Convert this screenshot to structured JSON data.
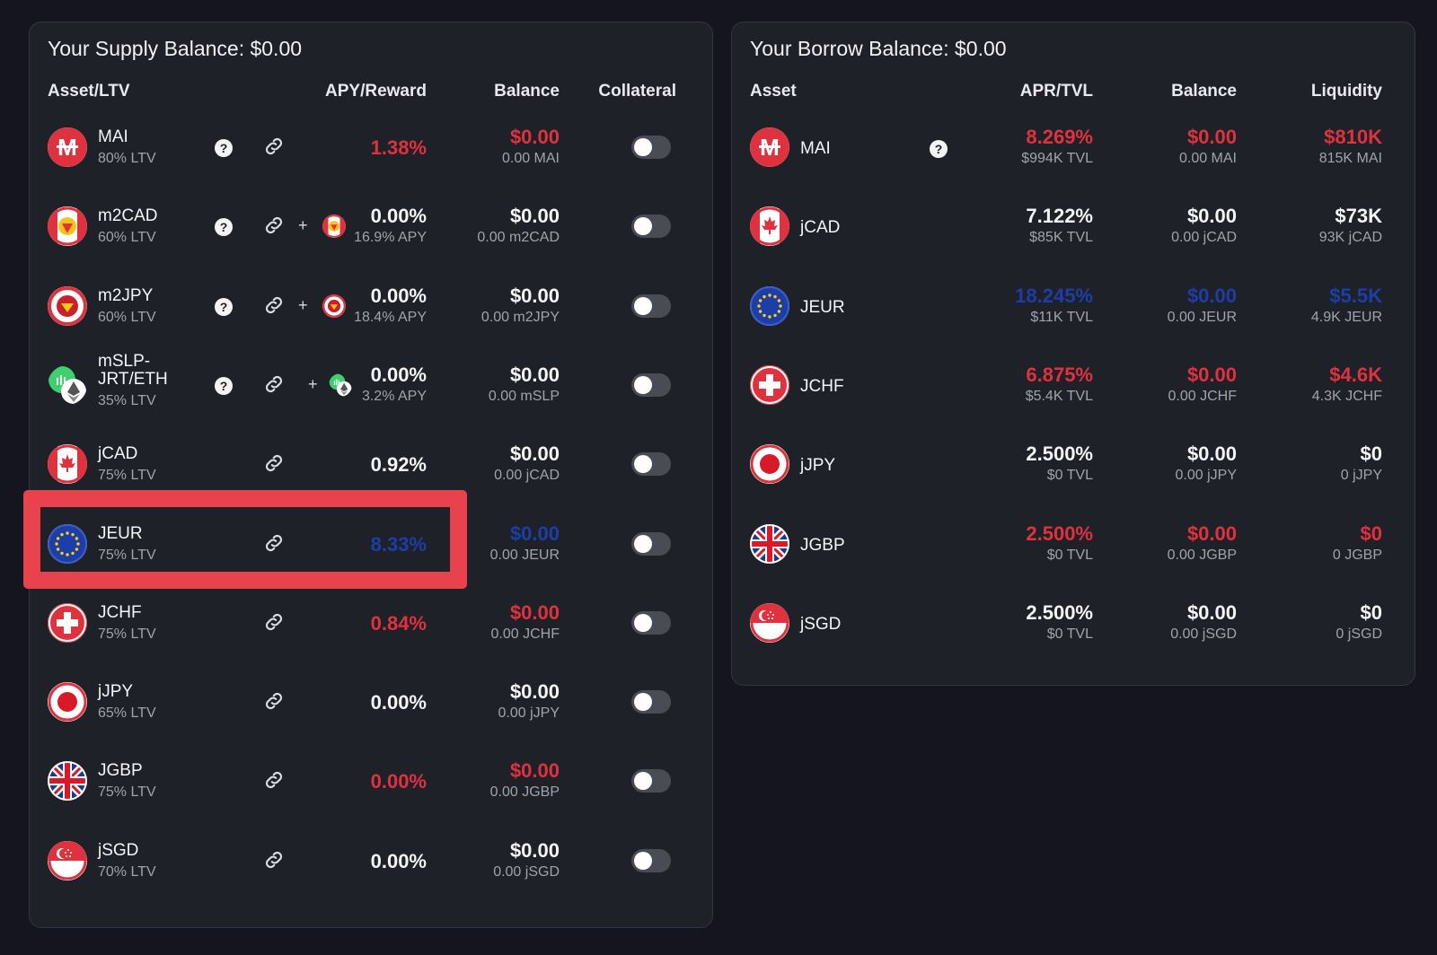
{
  "supply": {
    "title": "Your Supply Balance: $0.00",
    "headers": {
      "asset": "Asset/LTV",
      "apy": "APY/Reward",
      "balance": "Balance",
      "collateral": "Collateral"
    },
    "rows": [
      {
        "name": "MAI",
        "ltv": "80% LTV",
        "apy": "1.38%",
        "reward": "",
        "balance": "$0.00",
        "balance_sub": "0.00 MAI",
        "color": "#e0323e",
        "collateral": false
      },
      {
        "name": "m2CAD",
        "ltv": "60% LTV",
        "apy": "0.00%",
        "reward": "16.9% APY",
        "balance": "$0.00",
        "balance_sub": "0.00 m2CAD",
        "color": "#f5f5f7",
        "collateral": false
      },
      {
        "name": "m2JPY",
        "ltv": "60% LTV",
        "apy": "0.00%",
        "reward": "18.4% APY",
        "balance": "$0.00",
        "balance_sub": "0.00 m2JPY",
        "color": "#f5f5f7",
        "collateral": false
      },
      {
        "name": "mSLP-JRT/ETH",
        "name_line1": "mSLP-",
        "name_line2": "JRT/ETH",
        "ltv": "35% LTV",
        "apy": "0.00%",
        "reward": "3.2% APY",
        "balance": "$0.00",
        "balance_sub": "0.00 mSLP",
        "color": "#f5f5f7",
        "collateral": false
      },
      {
        "name": "jCAD",
        "ltv": "75% LTV",
        "apy": "0.92%",
        "reward": "",
        "balance": "$0.00",
        "balance_sub": "0.00 jCAD",
        "color": "#f5f5f7",
        "collateral": false
      },
      {
        "name": "JEUR",
        "ltv": "75% LTV",
        "apy": "8.33%",
        "reward": "",
        "balance": "$0.00",
        "balance_sub": "0.00 JEUR",
        "color": "#1d3ea8",
        "collateral": false
      },
      {
        "name": "JCHF",
        "ltv": "75% LTV",
        "apy": "0.84%",
        "reward": "",
        "balance": "$0.00",
        "balance_sub": "0.00 JCHF",
        "color": "#e0323e",
        "collateral": false
      },
      {
        "name": "jJPY",
        "ltv": "65% LTV",
        "apy": "0.00%",
        "reward": "",
        "balance": "$0.00",
        "balance_sub": "0.00 jJPY",
        "color": "#f5f5f7",
        "collateral": false
      },
      {
        "name": "JGBP",
        "ltv": "75% LTV",
        "apy": "0.00%",
        "reward": "",
        "balance": "$0.00",
        "balance_sub": "0.00 JGBP",
        "color": "#e0323e",
        "collateral": false
      },
      {
        "name": "jSGD",
        "ltv": "70% LTV",
        "apy": "0.00%",
        "reward": "",
        "balance": "$0.00",
        "balance_sub": "0.00 jSGD",
        "color": "#f5f5f7",
        "collateral": false
      }
    ]
  },
  "borrow": {
    "title": "Your Borrow Balance: $0.00",
    "headers": {
      "asset": "Asset",
      "apr": "APR/TVL",
      "balance": "Balance",
      "liquidity": "Liquidity"
    },
    "rows": [
      {
        "name": "MAI",
        "apr": "8.269%",
        "tvl": "$994K TVL",
        "balance": "$0.00",
        "balance_sub": "0.00 MAI",
        "liquidity": "$810K",
        "liquidity_sub": "815K MAI",
        "color": "#e0323e"
      },
      {
        "name": "jCAD",
        "apr": "7.122%",
        "tvl": "$85K TVL",
        "balance": "$0.00",
        "balance_sub": "0.00 jCAD",
        "liquidity": "$73K",
        "liquidity_sub": "93K jCAD",
        "color": "#f5f5f7"
      },
      {
        "name": "JEUR",
        "apr": "18.245%",
        "tvl": "$11K TVL",
        "balance": "$0.00",
        "balance_sub": "0.00 JEUR",
        "liquidity": "$5.5K",
        "liquidity_sub": "4.9K JEUR",
        "color": "#1d3ea8"
      },
      {
        "name": "JCHF",
        "apr": "6.875%",
        "tvl": "$5.4K TVL",
        "balance": "$0.00",
        "balance_sub": "0.00 JCHF",
        "liquidity": "$4.6K",
        "liquidity_sub": "4.3K JCHF",
        "color": "#e0323e"
      },
      {
        "name": "jJPY",
        "apr": "2.500%",
        "tvl": "$0 TVL",
        "balance": "$0.00",
        "balance_sub": "0.00 jJPY",
        "liquidity": "$0",
        "liquidity_sub": "0 jJPY",
        "color": "#f5f5f7"
      },
      {
        "name": "JGBP",
        "apr": "2.500%",
        "tvl": "$0 TVL",
        "balance": "$0.00",
        "balance_sub": "0.00 JGBP",
        "liquidity": "$0",
        "liquidity_sub": "0 JGBP",
        "color": "#e0323e"
      },
      {
        "name": "jSGD",
        "apr": "2.500%",
        "tvl": "$0 TVL",
        "balance": "$0.00",
        "balance_sub": "0.00 jSGD",
        "liquidity": "$0",
        "liquidity_sub": "0 jSGD",
        "color": "#f5f5f7"
      }
    ]
  },
  "symbols": {
    "help": "?",
    "plus": "+"
  },
  "icons": {
    "MAI": "mai-logo-icon",
    "m2CAD": "m2cad-logo-icon",
    "m2JPY": "m2jpy-logo-icon",
    "mSLP": "mslp-logo-icon",
    "jCAD": "canada-flag-icon",
    "JEUR": "eu-flag-icon",
    "JCHF": "swiss-flag-icon",
    "jJPY": "japan-flag-icon",
    "JGBP": "uk-flag-icon",
    "jSGD": "singapore-flag-icon"
  },
  "highlight_color": "#e8434c"
}
